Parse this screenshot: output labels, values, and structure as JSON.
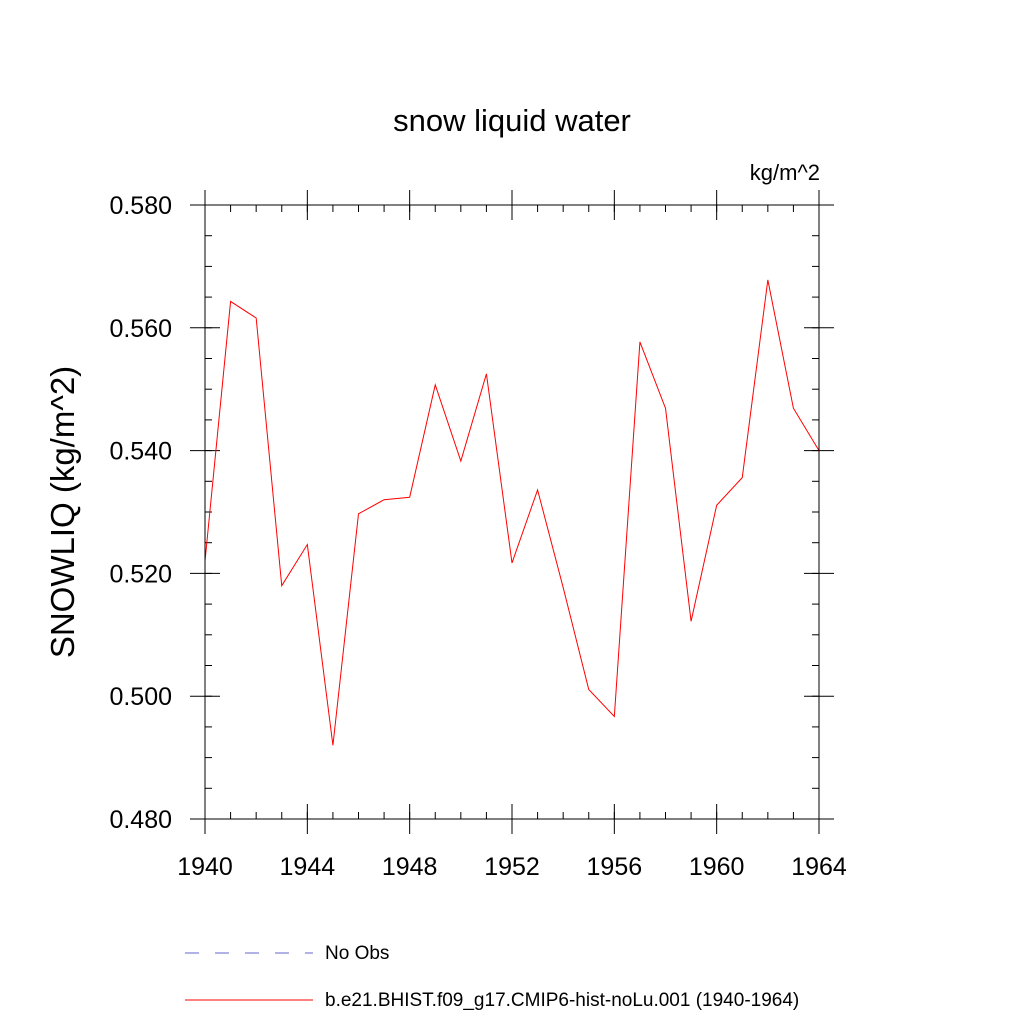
{
  "chart_data": {
    "type": "line",
    "title": "snow liquid water",
    "units_label": "kg/m^2",
    "xlabel": "",
    "ylabel": "SNOWLIQ  (kg/m^2)",
    "xlim": [
      1940,
      1964
    ],
    "ylim": [
      0.48,
      0.58
    ],
    "x_ticks": [
      "1940",
      "1944",
      "1948",
      "1952",
      "1956",
      "1960",
      "1964"
    ],
    "y_ticks": [
      "0.580",
      "0.560",
      "0.540",
      "0.520",
      "0.500",
      "0.480"
    ],
    "grid": false,
    "legend_position": "bottom",
    "series": [
      {
        "name": "b.e21.BHIST.f09_g17.CMIP6-hist-noLu.001 (1940-1964)",
        "color": "#ff0000",
        "style": "solid",
        "x": [
          1940,
          1941,
          1942,
          1943,
          1944,
          1945,
          1946,
          1947,
          1948,
          1949,
          1950,
          1951,
          1952,
          1953,
          1954,
          1955,
          1956,
          1957,
          1958,
          1959,
          1960,
          1961,
          1962,
          1963,
          1964
        ],
        "values": [
          0.522,
          0.5643,
          0.5616,
          0.518,
          0.5247,
          0.492,
          0.5297,
          0.532,
          0.5324,
          0.5507,
          0.5383,
          0.5525,
          0.5217,
          0.5336,
          0.5177,
          0.5011,
          0.4967,
          0.5577,
          0.5469,
          0.5122,
          0.5311,
          0.5356,
          0.5678,
          0.5469,
          0.54
        ]
      }
    ],
    "legend": [
      {
        "label": "No Obs",
        "color": "#6666cc",
        "style": "dashed"
      },
      {
        "label": "b.e21.BHIST.f09_g17.CMIP6-hist-noLu.001 (1940-1964)",
        "color": "#ff0000",
        "style": "solid"
      }
    ]
  }
}
